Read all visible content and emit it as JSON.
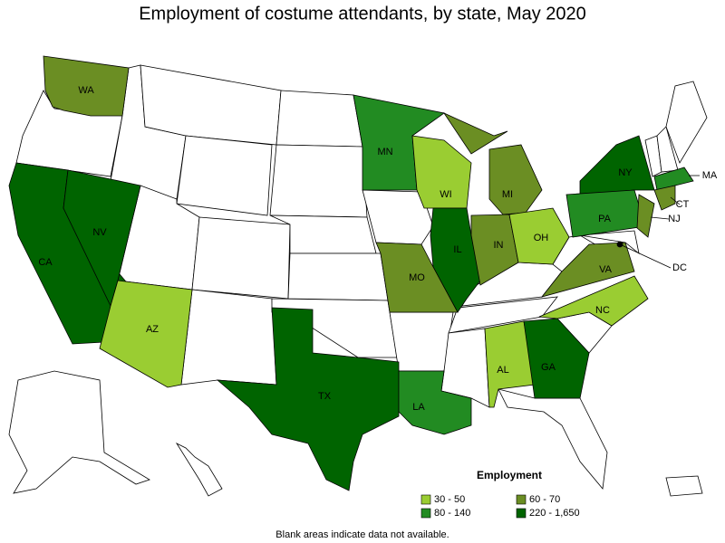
{
  "title": "Employment of costume attendants, by state, May 2020",
  "legend": {
    "title": "Employment",
    "items": [
      {
        "label": "30 - 50",
        "color": "#9acd32"
      },
      {
        "label": "60 - 70",
        "color": "#6b8e23"
      },
      {
        "label": "80 - 140",
        "color": "#228b22"
      },
      {
        "label": "220 - 1,650",
        "color": "#006400"
      }
    ]
  },
  "states": [
    {
      "label": "WA",
      "legend": 1
    },
    {
      "label": "CA",
      "legend": 3
    },
    {
      "label": "NV",
      "legend": 3
    },
    {
      "label": "AZ",
      "legend": 0
    },
    {
      "label": "TX",
      "legend": 3
    },
    {
      "label": "MN",
      "legend": 2
    },
    {
      "label": "WI",
      "legend": 0
    },
    {
      "label": "MI",
      "legend": 1
    },
    {
      "label": "IL",
      "legend": 3
    },
    {
      "label": "IN",
      "legend": 1
    },
    {
      "label": "OH",
      "legend": 0
    },
    {
      "label": "MO",
      "legend": 1
    },
    {
      "label": "LA",
      "legend": 2
    },
    {
      "label": "AL",
      "legend": 0
    },
    {
      "label": "GA",
      "legend": 3
    },
    {
      "label": "NY",
      "legend": 3
    },
    {
      "label": "PA",
      "legend": 2
    },
    {
      "label": "VA",
      "legend": 1
    },
    {
      "label": "NC",
      "legend": 0
    },
    {
      "label": "MA",
      "legend": 2
    },
    {
      "label": "CT",
      "legend": 1
    },
    {
      "label": "NJ",
      "legend": 1
    },
    {
      "label": "DC"
    }
  ],
  "note": "Blank areas indicate data not available."
}
